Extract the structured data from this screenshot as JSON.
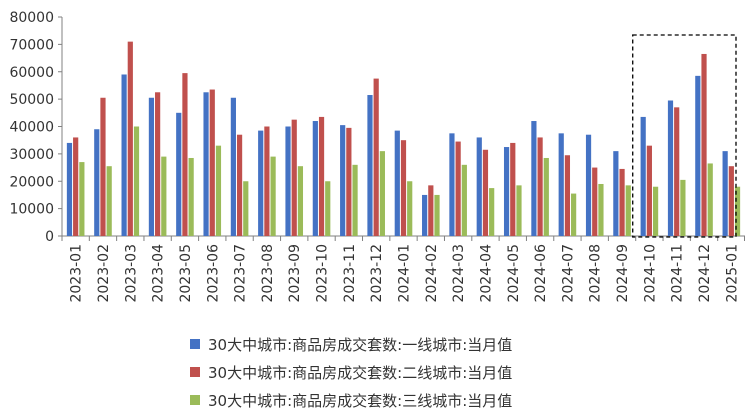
{
  "chart_data": {
    "type": "bar",
    "title": "",
    "xlabel": "",
    "ylabel": "",
    "ylim": [
      0,
      80000
    ],
    "yticks": [
      0,
      10000,
      20000,
      30000,
      40000,
      50000,
      60000,
      70000,
      80000
    ],
    "grid": false,
    "legend_position": "bottom",
    "categories": [
      "2023-01",
      "2023-02",
      "2023-03",
      "2023-04",
      "2023-05",
      "2023-06",
      "2023-07",
      "2023-08",
      "2023-09",
      "2023-10",
      "2023-11",
      "2023-12",
      "2024-01",
      "2024-02",
      "2024-03",
      "2024-04",
      "2024-05",
      "2024-06",
      "2024-07",
      "2024-08",
      "2024-09",
      "2024-10",
      "2024-11",
      "2024-12",
      "2025-01"
    ],
    "series": [
      {
        "name": "30大中城市:商品房成交套数:一线城市:当月值",
        "color": "#4472C4",
        "values": [
          34000,
          39000,
          59000,
          50500,
          45000,
          52500,
          50500,
          38500,
          40000,
          42000,
          40500,
          51500,
          38500,
          15000,
          37500,
          36000,
          32500,
          42000,
          37500,
          37000,
          31000,
          43500,
          49500,
          58500,
          31000
        ]
      },
      {
        "name": "30大中城市:商品房成交套数:二线城市:当月值",
        "color": "#C0504D",
        "values": [
          36000,
          50500,
          71000,
          52500,
          59500,
          53500,
          37000,
          40000,
          42500,
          43500,
          39500,
          57500,
          35000,
          18500,
          34500,
          31500,
          34000,
          36000,
          29500,
          25000,
          24500,
          33000,
          47000,
          66500,
          25500
        ]
      },
      {
        "name": "30大中城市:商品房成交套数:三线城市:当月值",
        "color": "#9BBB59",
        "values": [
          27000,
          25500,
          40000,
          29000,
          28500,
          33000,
          20000,
          29000,
          25500,
          20000,
          26000,
          31000,
          20000,
          15000,
          26000,
          17500,
          18500,
          28500,
          15500,
          19000,
          18500,
          18000,
          20500,
          26500,
          18000
        ]
      }
    ]
  }
}
